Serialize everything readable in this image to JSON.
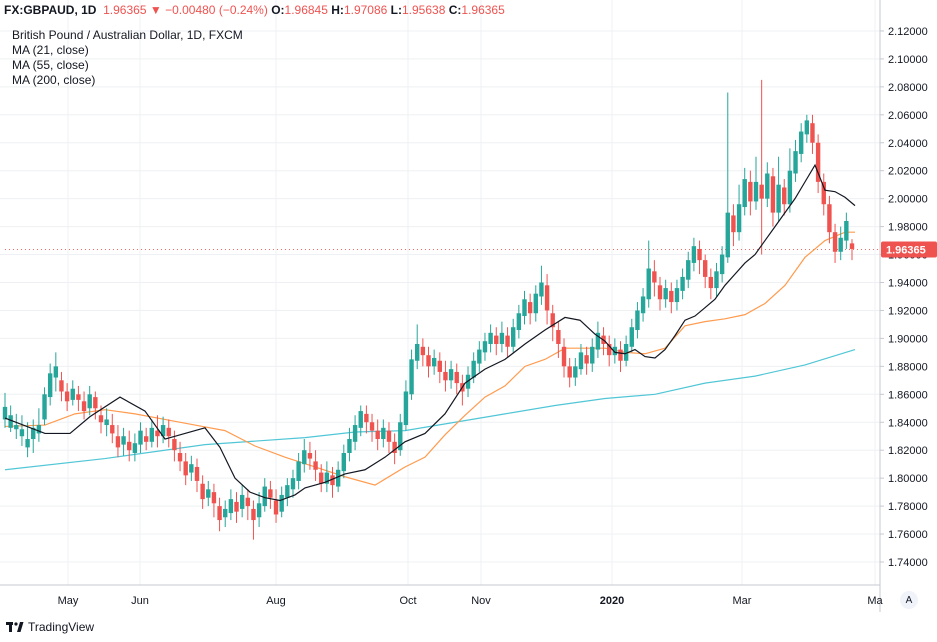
{
  "header": {
    "symbol": "FX:GBPAUD, 1D",
    "last": "1.96365",
    "arrow": "▼",
    "change": "−0.00480 (−0.24%)",
    "o_label": "O:",
    "o_value": "1.96845",
    "h_label": "H:",
    "h_value": "1.97086",
    "l_label": "L:",
    "l_value": "1.95638",
    "c_label": "C:",
    "c_value": "1.96365"
  },
  "legend": {
    "title": "British Pound / Australian Dollar, 1D, FXCM",
    "ma21": "MA (21, close)",
    "ma55": "MA (55, close)",
    "ma200": "MA (200, close)"
  },
  "price_label": "1.96365",
  "auto_label": "A",
  "branding": "TradingView",
  "colors": {
    "up": "#26a69a",
    "down": "#ef5350",
    "ma21": "#131722",
    "ma55": "#ff9b4f",
    "ma200": "#50c6d6",
    "grid": "#eef0f3"
  },
  "chart_data": {
    "type": "line",
    "chart_style": "candlestick",
    "ylim": [
      1.73,
      2.125
    ],
    "yticks": [
      "2.12000",
      "2.10000",
      "2.08000",
      "2.06000",
      "2.04000",
      "2.02000",
      "2.00000",
      "1.98000",
      "1.96000",
      "1.94000",
      "1.92000",
      "1.90000",
      "1.88000",
      "1.86000",
      "1.84000",
      "1.82000",
      "1.80000",
      "1.78000",
      "1.76000",
      "1.74000"
    ],
    "xticks": [
      "May",
      "Jun",
      "Aug",
      "Oct",
      "Nov",
      "2020",
      "Mar",
      "Ma"
    ],
    "grid": true,
    "last_close": 1.96365,
    "series": [
      {
        "name": "MA (21, close)",
        "key": "ma21",
        "x": [
          0,
          40,
          65,
          85,
          115,
          140,
          160,
          180,
          200,
          215,
          230,
          245,
          260,
          275,
          290,
          300,
          320,
          340,
          360,
          380,
          400,
          420,
          440,
          460,
          480,
          500,
          520,
          540,
          560,
          575,
          590,
          600,
          610,
          620,
          630,
          640,
          650,
          660,
          670,
          680,
          690,
          700,
          710,
          720,
          730,
          740,
          750,
          760,
          770,
          780,
          790,
          800,
          810,
          820,
          830,
          840,
          850
        ],
        "y": [
          1.843,
          1.832,
          1.832,
          1.844,
          1.858,
          1.848,
          1.828,
          1.832,
          1.836,
          1.822,
          1.8,
          1.79,
          1.786,
          1.784,
          1.788,
          1.793,
          1.797,
          1.803,
          1.806,
          1.815,
          1.826,
          1.832,
          1.846,
          1.868,
          1.878,
          1.885,
          1.896,
          1.906,
          1.915,
          1.913,
          1.903,
          1.898,
          1.89,
          1.889,
          1.892,
          1.887,
          1.886,
          1.892,
          1.902,
          1.913,
          1.916,
          1.922,
          1.928,
          1.938,
          1.946,
          1.954,
          1.96,
          1.97,
          1.98,
          1.99,
          2.0,
          2.012,
          2.024,
          2.006,
          2.005,
          2.001,
          1.995
        ]
      },
      {
        "name": "MA (55, close)",
        "key": "ma55",
        "x": [
          0,
          40,
          70,
          100,
          130,
          160,
          190,
          220,
          250,
          280,
          310,
          340,
          370,
          400,
          420,
          440,
          460,
          480,
          500,
          520,
          540,
          560,
          580,
          600,
          620,
          640,
          660,
          680,
          700,
          720,
          740,
          760,
          780,
          800,
          820,
          840,
          850
        ],
        "y": [
          1.837,
          1.838,
          1.846,
          1.849,
          1.846,
          1.842,
          1.838,
          1.834,
          1.823,
          1.815,
          1.808,
          1.801,
          1.795,
          1.808,
          1.815,
          1.831,
          1.845,
          1.858,
          1.866,
          1.88,
          1.885,
          1.893,
          1.893,
          1.893,
          1.89,
          1.889,
          1.893,
          1.909,
          1.912,
          1.914,
          1.917,
          1.925,
          1.938,
          1.958,
          1.97,
          1.976,
          1.976
        ]
      },
      {
        "name": "MA (200, close)",
        "key": "ma200",
        "x": [
          0,
          100,
          200,
          300,
          350,
          400,
          450,
          500,
          550,
          600,
          650,
          700,
          750,
          800,
          850
        ],
        "y": [
          1.806,
          1.814,
          1.824,
          1.829,
          1.833,
          1.834,
          1.84,
          1.846,
          1.852,
          1.857,
          1.86,
          1.868,
          1.873,
          1.881,
          1.892
        ]
      }
    ],
    "candles": [
      [
        1.842,
        1.851,
        1.836,
        1.861
      ],
      [
        1.836,
        1.845,
        1.833,
        1.852
      ],
      [
        1.835,
        1.838,
        1.828,
        1.846
      ],
      [
        1.83,
        1.835,
        1.823,
        1.845
      ],
      [
        1.822,
        1.828,
        1.815,
        1.84
      ],
      [
        1.828,
        1.836,
        1.818,
        1.842
      ],
      [
        1.832,
        1.838,
        1.826,
        1.85
      ],
      [
        1.842,
        1.86,
        1.838,
        1.865
      ],
      [
        1.858,
        1.875,
        1.852,
        1.882
      ],
      [
        1.872,
        1.88,
        1.862,
        1.89
      ],
      [
        1.87,
        1.862,
        1.855,
        1.876
      ],
      [
        1.862,
        1.855,
        1.848,
        1.868
      ],
      [
        1.856,
        1.864,
        1.852,
        1.87
      ],
      [
        1.86,
        1.856,
        1.848,
        1.866
      ],
      [
        1.855,
        1.848,
        1.842,
        1.862
      ],
      [
        1.85,
        1.86,
        1.845,
        1.866
      ],
      [
        1.858,
        1.85,
        1.842,
        1.862
      ],
      [
        1.845,
        1.84,
        1.832,
        1.852
      ],
      [
        1.838,
        1.842,
        1.83,
        1.85
      ],
      [
        1.838,
        1.832,
        1.825,
        1.846
      ],
      [
        1.83,
        1.822,
        1.815,
        1.838
      ],
      [
        1.824,
        1.83,
        1.816,
        1.836
      ],
      [
        1.826,
        1.82,
        1.812,
        1.834
      ],
      [
        1.818,
        1.825,
        1.812,
        1.832
      ],
      [
        1.824,
        1.834,
        1.818,
        1.84
      ],
      [
        1.83,
        1.826,
        1.82,
        1.836
      ],
      [
        1.826,
        1.836,
        1.822,
        1.842
      ],
      [
        1.834,
        1.83,
        1.822,
        1.845
      ],
      [
        1.83,
        1.838,
        1.825,
        1.844
      ],
      [
        1.836,
        1.83,
        1.822,
        1.842
      ],
      [
        1.828,
        1.82,
        1.812,
        1.834
      ],
      [
        1.818,
        1.812,
        1.805,
        1.826
      ],
      [
        1.812,
        1.802,
        1.795,
        1.818
      ],
      [
        1.804,
        1.81,
        1.798,
        1.816
      ],
      [
        1.808,
        1.798,
        1.79,
        1.814
      ],
      [
        1.796,
        1.785,
        1.778,
        1.802
      ],
      [
        1.786,
        1.792,
        1.78,
        1.798
      ],
      [
        1.79,
        1.782,
        1.772,
        1.796
      ],
      [
        1.78,
        1.77,
        1.762,
        1.786
      ],
      [
        1.772,
        1.778,
        1.765,
        1.784
      ],
      [
        1.775,
        1.785,
        1.77,
        1.792
      ],
      [
        1.783,
        1.776,
        1.768,
        1.79
      ],
      [
        1.778,
        1.788,
        1.772,
        1.795
      ],
      [
        1.786,
        1.78,
        1.77,
        1.792
      ],
      [
        1.778,
        1.77,
        1.756,
        1.784
      ],
      [
        1.772,
        1.782,
        1.765,
        1.79
      ],
      [
        1.78,
        1.794,
        1.776,
        1.8
      ],
      [
        1.792,
        1.786,
        1.778,
        1.798
      ],
      [
        1.784,
        1.774,
        1.768,
        1.792
      ],
      [
        1.776,
        1.788,
        1.772,
        1.794
      ],
      [
        1.786,
        1.795,
        1.78,
        1.8
      ],
      [
        1.792,
        1.8,
        1.786,
        1.806
      ],
      [
        1.798,
        1.812,
        1.792,
        1.818
      ],
      [
        1.81,
        1.82,
        1.804,
        1.828
      ],
      [
        1.818,
        1.814,
        1.806,
        1.826
      ],
      [
        1.812,
        1.806,
        1.798,
        1.82
      ],
      [
        1.804,
        1.796,
        1.79,
        1.81
      ],
      [
        1.796,
        1.804,
        1.79,
        1.812
      ],
      [
        1.802,
        1.795,
        1.786,
        1.808
      ],
      [
        1.794,
        1.806,
        1.79,
        1.812
      ],
      [
        1.805,
        1.818,
        1.8,
        1.824
      ],
      [
        1.818,
        1.828,
        1.812,
        1.836
      ],
      [
        1.826,
        1.838,
        1.82,
        1.845
      ],
      [
        1.836,
        1.848,
        1.83,
        1.852
      ],
      [
        1.846,
        1.84,
        1.832,
        1.852
      ],
      [
        1.84,
        1.834,
        1.826,
        1.846
      ],
      [
        1.834,
        1.828,
        1.82,
        1.842
      ],
      [
        1.828,
        1.836,
        1.822,
        1.842
      ],
      [
        1.834,
        1.826,
        1.818,
        1.84
      ],
      [
        1.826,
        1.818,
        1.81,
        1.832
      ],
      [
        1.82,
        1.84,
        1.816,
        1.846
      ],
      [
        1.838,
        1.862,
        1.834,
        1.87
      ],
      [
        1.86,
        1.885,
        1.856,
        1.892
      ],
      [
        1.884,
        1.896,
        1.878,
        1.91
      ],
      [
        1.894,
        1.888,
        1.88,
        1.9
      ],
      [
        1.888,
        1.88,
        1.872,
        1.894
      ],
      [
        1.88,
        1.886,
        1.874,
        1.892
      ],
      [
        1.884,
        1.876,
        1.868,
        1.89
      ],
      [
        1.876,
        1.87,
        1.862,
        1.884
      ],
      [
        1.87,
        1.878,
        1.864,
        1.884
      ],
      [
        1.876,
        1.868,
        1.86,
        1.882
      ],
      [
        1.868,
        1.862,
        1.852,
        1.874
      ],
      [
        1.864,
        1.874,
        1.858,
        1.88
      ],
      [
        1.872,
        1.884,
        1.868,
        1.89
      ],
      [
        1.882,
        1.892,
        1.876,
        1.898
      ],
      [
        1.89,
        1.898,
        1.884,
        1.904
      ],
      [
        1.896,
        1.904,
        1.89,
        1.91
      ],
      [
        1.902,
        1.896,
        1.888,
        1.908
      ],
      [
        1.896,
        1.904,
        1.89,
        1.912
      ],
      [
        1.902,
        1.894,
        1.886,
        1.908
      ],
      [
        1.894,
        1.908,
        1.89,
        1.914
      ],
      [
        1.906,
        1.918,
        1.9,
        1.924
      ],
      [
        1.916,
        1.928,
        1.91,
        1.934
      ],
      [
        1.926,
        1.918,
        1.91,
        1.932
      ],
      [
        1.918,
        1.932,
        1.912,
        1.938
      ],
      [
        1.93,
        1.94,
        1.924,
        1.952
      ],
      [
        1.938,
        1.92,
        1.91,
        1.946
      ],
      [
        1.918,
        1.908,
        1.898,
        1.924
      ],
      [
        1.906,
        1.896,
        1.886,
        1.912
      ],
      [
        1.894,
        1.88,
        1.872,
        1.9
      ],
      [
        1.88,
        1.872,
        1.865,
        1.886
      ],
      [
        1.872,
        1.88,
        1.866,
        1.886
      ],
      [
        1.878,
        1.89,
        1.874,
        1.896
      ],
      [
        1.888,
        1.882,
        1.874,
        1.894
      ],
      [
        1.882,
        1.894,
        1.876,
        1.9
      ],
      [
        1.892,
        1.904,
        1.886,
        1.912
      ],
      [
        1.902,
        1.896,
        1.888,
        1.908
      ],
      [
        1.896,
        1.888,
        1.88,
        1.902
      ],
      [
        1.888,
        1.894,
        1.882,
        1.9
      ],
      [
        1.892,
        1.884,
        1.876,
        1.898
      ],
      [
        1.884,
        1.896,
        1.88,
        1.902
      ],
      [
        1.894,
        1.908,
        1.89,
        1.914
      ],
      [
        1.906,
        1.92,
        1.9,
        1.926
      ],
      [
        1.918,
        1.93,
        1.912,
        1.936
      ],
      [
        1.928,
        1.95,
        1.922,
        1.97
      ],
      [
        1.948,
        1.94,
        1.93,
        1.956
      ],
      [
        1.938,
        1.928,
        1.92,
        1.944
      ],
      [
        1.928,
        1.936,
        1.922,
        1.942
      ],
      [
        1.934,
        1.926,
        1.918,
        1.94
      ],
      [
        1.926,
        1.936,
        1.92,
        1.942
      ],
      [
        1.934,
        1.944,
        1.928,
        1.95
      ],
      [
        1.942,
        1.956,
        1.936,
        1.962
      ],
      [
        1.954,
        1.966,
        1.948,
        1.972
      ],
      [
        1.964,
        1.956,
        1.946,
        1.97
      ],
      [
        1.956,
        1.944,
        1.936,
        1.96
      ],
      [
        1.944,
        1.936,
        1.928,
        1.95
      ],
      [
        1.936,
        1.948,
        1.93,
        1.954
      ],
      [
        1.946,
        1.96,
        1.94,
        1.966
      ],
      [
        1.958,
        1.99,
        1.954,
        2.076
      ],
      [
        1.988,
        1.976,
        1.966,
        1.996
      ],
      [
        1.976,
        1.996,
        1.97,
        2.01
      ],
      [
        1.994,
        2.014,
        1.988,
        2.022
      ],
      [
        2.012,
        1.998,
        1.988,
        2.02
      ],
      [
        1.998,
        2.012,
        1.992,
        2.03
      ],
      [
        2.01,
        2.0,
        1.96,
        2.085
      ],
      [
        2.0,
        2.018,
        1.994,
        2.026
      ],
      [
        2.016,
        1.99,
        1.98,
        2.022
      ],
      [
        1.99,
        2.01,
        1.984,
        2.03
      ],
      [
        2.008,
        1.996,
        1.988,
        2.014
      ],
      [
        1.996,
        2.02,
        1.99,
        2.036
      ],
      [
        2.018,
        2.034,
        2.012,
        2.042
      ],
      [
        2.032,
        2.048,
        2.026,
        2.054
      ],
      [
        2.046,
        2.056,
        2.04,
        2.06
      ],
      [
        2.054,
        2.04,
        2.032,
        2.06
      ],
      [
        2.04,
        2.012,
        2.004,
        2.046
      ],
      [
        2.012,
        1.996,
        1.988,
        2.018
      ],
      [
        1.996,
        1.976,
        1.968,
        2.002
      ],
      [
        1.976,
        1.962,
        1.954,
        1.982
      ],
      [
        1.962,
        1.972,
        1.956,
        1.98
      ],
      [
        1.97,
        1.984,
        1.964,
        1.99
      ],
      [
        1.968,
        1.964,
        1.956,
        1.971
      ]
    ]
  }
}
